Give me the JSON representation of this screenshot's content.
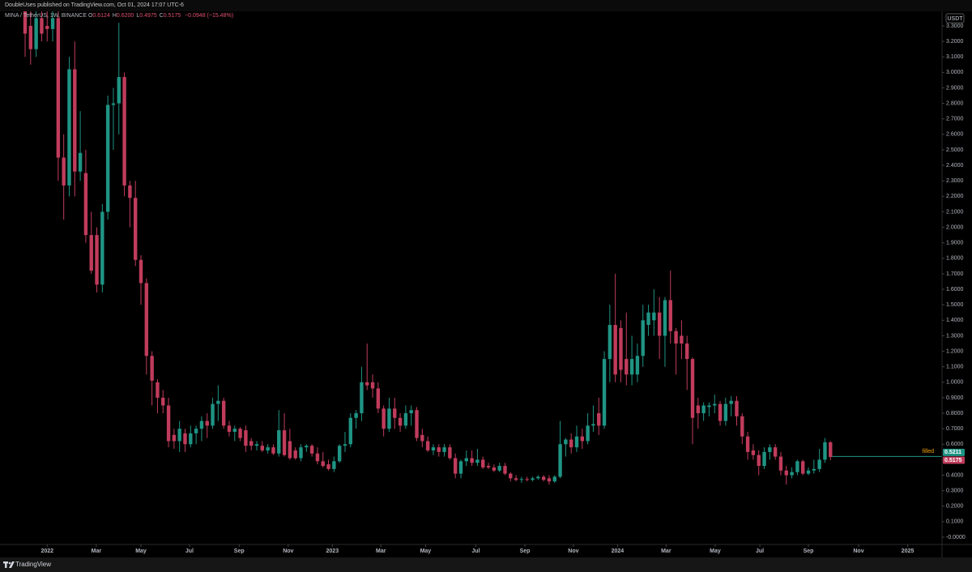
{
  "header": {
    "publisher": "DoubleUses published on TradingView.com, Oct 01, 2024 17:07 UTC-6"
  },
  "chart_data": {
    "type": "candlestick",
    "symbol": "MINA / TetherUS, 1W, BINANCE",
    "ohlc_legend": [
      {
        "label": "O",
        "value": "0.6124"
      },
      {
        "label": "H",
        "value": "0.6200"
      },
      {
        "label": "L",
        "value": "0.4975"
      },
      {
        "label": "C",
        "value": "0.5175"
      }
    ],
    "change": "−0.0948 (−15.48%)",
    "currency": "USDT",
    "up_color": "#1f9484",
    "down_color": "#c03c5c",
    "open": [
      3.4,
      3.3,
      3.15,
      3.35,
      3.3,
      3.28,
      3.35,
      2.45,
      2.27,
      3.02,
      2.36,
      2.35,
      1.95,
      1.95,
      1.63,
      2.1,
      2.79,
      2.8,
      2.97,
      2.27,
      2.19,
      1.79,
      1.64,
      1.17,
      1.0,
      0.9,
      0.85,
      0.66,
      0.62,
      0.67,
      0.6,
      0.67,
      0.7,
      0.75,
      0.72,
      0.86,
      0.88,
      0.72,
      0.68,
      0.7,
      0.69,
      0.62,
      0.59,
      0.59,
      0.56,
      0.58,
      0.54,
      0.69,
      0.62,
      0.56,
      0.51,
      0.58,
      0.59,
      0.54,
      0.49,
      0.47,
      0.44,
      0.49,
      0.59,
      0.6,
      0.77,
      0.8,
      1.0,
      1.0,
      0.96,
      0.83,
      0.7,
      0.83,
      0.77,
      0.72,
      0.8,
      0.82,
      0.66,
      0.62,
      0.56,
      0.58,
      0.55,
      0.58,
      0.51,
      0.41,
      0.49,
      0.51,
      0.48,
      0.5,
      0.46,
      0.45,
      0.43,
      0.46,
      0.41,
      0.38,
      0.37,
      0.375,
      0.37,
      0.38,
      0.39,
      0.38,
      0.36,
      0.39,
      0.6,
      0.63,
      0.58,
      0.65,
      0.62,
      0.72,
      0.8,
      0.72,
      1.15,
      1.37,
      1.35,
      1.15,
      1.05,
      1.05,
      1.17,
      1.37,
      1.4,
      1.45,
      1.3,
      1.53,
      1.33,
      1.3,
      1.25,
      1.15,
      0.85,
      0.8,
      0.84,
      0.85,
      0.86,
      0.75,
      0.86,
      0.88,
      0.78,
      0.65,
      0.56,
      0.53,
      0.46,
      0.55,
      0.58,
      0.52,
      0.43,
      0.4,
      0.42,
      0.49,
      0.41,
      0.43,
      0.44,
      0.5,
      0.6124
    ],
    "high": [
      3.45,
      3.4,
      3.4,
      3.4,
      3.4,
      3.4,
      3.4,
      2.6,
      3.1,
      3.2,
      2.75,
      2.5,
      2.1,
      2.0,
      2.15,
      2.85,
      2.9,
      3.32,
      3.0,
      2.3,
      2.3,
      1.82,
      1.67,
      1.2,
      1.02,
      0.95,
      0.9,
      0.7,
      0.75,
      0.7,
      0.72,
      0.72,
      0.78,
      0.8,
      0.9,
      0.98,
      0.9,
      0.75,
      0.72,
      0.71,
      0.72,
      0.64,
      0.62,
      0.62,
      0.6,
      0.6,
      0.82,
      0.8,
      0.7,
      0.58,
      0.6,
      0.6,
      0.6,
      0.58,
      0.55,
      0.5,
      0.52,
      0.6,
      0.68,
      0.8,
      0.82,
      1.1,
      1.25,
      1.05,
      1.0,
      0.85,
      0.9,
      0.9,
      0.8,
      0.85,
      0.85,
      0.84,
      0.7,
      0.65,
      0.6,
      0.6,
      0.6,
      0.6,
      0.54,
      0.5,
      0.56,
      0.56,
      0.57,
      0.52,
      0.48,
      0.47,
      0.48,
      0.48,
      0.42,
      0.4,
      0.39,
      0.39,
      0.39,
      0.4,
      0.4,
      0.4,
      0.4,
      0.75,
      0.64,
      0.67,
      0.72,
      0.7,
      0.8,
      0.85,
      0.9,
      1.2,
      1.5,
      1.7,
      1.4,
      1.45,
      1.3,
      1.25,
      1.5,
      1.5,
      1.6,
      1.55,
      1.55,
      1.72,
      1.35,
      1.4,
      1.3,
      1.16,
      0.9,
      0.87,
      0.87,
      0.92,
      0.88,
      0.9,
      0.91,
      0.91,
      0.8,
      0.68,
      0.6,
      0.56,
      0.58,
      0.6,
      0.6,
      0.55,
      0.46,
      0.45,
      0.5,
      0.5,
      0.45,
      0.5,
      0.57,
      0.64,
      0.62
    ],
    "low": [
      3.1,
      3.05,
      3.1,
      3.2,
      3.2,
      3.2,
      2.3,
      2.05,
      2.2,
      2.2,
      2.3,
      1.9,
      1.7,
      1.58,
      1.58,
      2.05,
      2.5,
      2.6,
      2.2,
      2.0,
      1.75,
      1.5,
      1.05,
      0.85,
      0.8,
      0.8,
      0.58,
      0.57,
      0.55,
      0.55,
      0.58,
      0.6,
      0.62,
      0.64,
      0.7,
      0.75,
      0.7,
      0.65,
      0.62,
      0.62,
      0.55,
      0.56,
      0.56,
      0.55,
      0.54,
      0.53,
      0.52,
      0.52,
      0.5,
      0.5,
      0.49,
      0.55,
      0.52,
      0.47,
      0.45,
      0.43,
      0.42,
      0.48,
      0.55,
      0.58,
      0.7,
      0.75,
      0.95,
      0.9,
      0.8,
      0.65,
      0.68,
      0.7,
      0.68,
      0.7,
      0.72,
      0.62,
      0.58,
      0.55,
      0.53,
      0.52,
      0.52,
      0.5,
      0.38,
      0.38,
      0.46,
      0.46,
      0.46,
      0.44,
      0.44,
      0.42,
      0.42,
      0.4,
      0.36,
      0.36,
      0.35,
      0.36,
      0.36,
      0.37,
      0.36,
      0.34,
      0.35,
      0.38,
      0.52,
      0.54,
      0.55,
      0.57,
      0.6,
      0.68,
      0.66,
      0.7,
      1.0,
      1.0,
      1.0,
      0.98,
      0.98,
      1.0,
      1.1,
      1.3,
      1.3,
      1.15,
      1.1,
      1.25,
      1.05,
      1.15,
      0.95,
      0.6,
      0.7,
      0.75,
      0.78,
      0.8,
      0.72,
      0.72,
      0.78,
      0.72,
      0.6,
      0.5,
      0.5,
      0.4,
      0.44,
      0.5,
      0.5,
      0.4,
      0.34,
      0.38,
      0.4,
      0.4,
      0.4,
      0.41,
      0.42,
      0.48,
      0.4975
    ],
    "close": [
      3.25,
      3.15,
      3.35,
      3.25,
      3.28,
      3.35,
      2.45,
      2.27,
      3.02,
      2.36,
      2.48,
      1.95,
      1.72,
      1.63,
      2.1,
      2.79,
      2.8,
      2.97,
      2.27,
      2.19,
      1.79,
      1.64,
      1.17,
      1.01,
      0.9,
      0.85,
      0.62,
      0.62,
      0.7,
      0.6,
      0.67,
      0.7,
      0.75,
      0.72,
      0.86,
      0.88,
      0.72,
      0.68,
      0.7,
      0.64,
      0.59,
      0.59,
      0.6,
      0.56,
      0.58,
      0.54,
      0.69,
      0.53,
      0.51,
      0.51,
      0.58,
      0.59,
      0.54,
      0.49,
      0.46,
      0.44,
      0.49,
      0.59,
      0.6,
      0.77,
      0.8,
      1.0,
      0.98,
      0.96,
      0.83,
      0.7,
      0.83,
      0.77,
      0.72,
      0.8,
      0.82,
      0.64,
      0.62,
      0.56,
      0.58,
      0.55,
      0.58,
      0.51,
      0.41,
      0.49,
      0.51,
      0.48,
      0.5,
      0.45,
      0.45,
      0.43,
      0.46,
      0.41,
      0.38,
      0.37,
      0.375,
      0.37,
      0.38,
      0.39,
      0.37,
      0.36,
      0.39,
      0.6,
      0.63,
      0.58,
      0.65,
      0.62,
      0.72,
      0.73,
      0.72,
      1.15,
      1.37,
      1.05,
      1.08,
      1.05,
      1.15,
      1.17,
      1.4,
      1.45,
      1.45,
      1.3,
      1.53,
      1.33,
      1.25,
      1.25,
      1.15,
      0.77,
      0.8,
      0.85,
      0.85,
      0.86,
      0.75,
      0.86,
      0.88,
      0.78,
      0.65,
      0.55,
      0.53,
      0.46,
      0.55,
      0.58,
      0.52,
      0.43,
      0.4,
      0.42,
      0.49,
      0.41,
      0.43,
      0.44,
      0.5,
      0.6124,
      0.5175
    ],
    "ylim": [
      -0.047,
      3.394
    ],
    "yticks": [
      {
        "value": 0,
        "label": "-0.0000"
      },
      {
        "value": 0.1,
        "label": "0.1000"
      },
      {
        "value": 0.2,
        "label": "0.2000"
      },
      {
        "value": 0.3,
        "label": "0.3000"
      },
      {
        "value": 0.4,
        "label": "0.4000"
      },
      {
        "value": 0.5,
        "label": "0.5000"
      },
      {
        "value": 0.6,
        "label": "0.6000"
      },
      {
        "value": 0.7,
        "label": "0.7000"
      },
      {
        "value": 0.8,
        "label": "0.8000"
      },
      {
        "value": 0.9,
        "label": "0.9000"
      },
      {
        "value": 1.0,
        "label": "1.0000"
      },
      {
        "value": 1.1,
        "label": "1.1000"
      },
      {
        "value": 1.2,
        "label": "1.2000"
      },
      {
        "value": 1.3,
        "label": "1.3000"
      },
      {
        "value": 1.4,
        "label": "1.4000"
      },
      {
        "value": 1.5,
        "label": "1.5000"
      },
      {
        "value": 1.6,
        "label": "1.6000"
      },
      {
        "value": 1.7,
        "label": "1.7000"
      },
      {
        "value": 1.8,
        "label": "1.8000"
      },
      {
        "value": 1.9,
        "label": "1.9000"
      },
      {
        "value": 2.0,
        "label": "2.0000"
      },
      {
        "value": 2.1,
        "label": "2.1000"
      },
      {
        "value": 2.2,
        "label": "2.2000"
      },
      {
        "value": 2.3,
        "label": "2.3000"
      },
      {
        "value": 2.4,
        "label": "2.4000"
      },
      {
        "value": 2.5,
        "label": "2.5000"
      },
      {
        "value": 2.6,
        "label": "2.6000"
      },
      {
        "value": 2.7,
        "label": "2.7000"
      },
      {
        "value": 2.8,
        "label": "2.8000"
      },
      {
        "value": 2.9,
        "label": "2.9000"
      },
      {
        "value": 3.0,
        "label": "3.0000"
      },
      {
        "value": 3.1,
        "label": "3.1000"
      },
      {
        "value": 3.2,
        "label": "3.2000"
      },
      {
        "value": 3.3,
        "label": "3.3000"
      }
    ],
    "xticks": [
      {
        "value": 4,
        "label": "2022"
      },
      {
        "value": 12.9,
        "label": "Mar"
      },
      {
        "value": 21.0,
        "label": "May"
      },
      {
        "value": 29.8,
        "label": "Jul"
      },
      {
        "value": 38.8,
        "label": "Sep"
      },
      {
        "value": 47.7,
        "label": "Nov"
      },
      {
        "value": 55.7,
        "label": "2023"
      },
      {
        "value": 64.5,
        "label": "Mar"
      },
      {
        "value": 72.6,
        "label": "May"
      },
      {
        "value": 81.7,
        "label": "Jul"
      },
      {
        "value": 90.6,
        "label": "Sep"
      },
      {
        "value": 99.4,
        "label": "Nov"
      },
      {
        "value": 107.4,
        "label": "2024"
      },
      {
        "value": 116.2,
        "label": "Mar"
      },
      {
        "value": 125.1,
        "label": "May"
      },
      {
        "value": 133.2,
        "label": "Jul"
      },
      {
        "value": 142.0,
        "label": "Sep"
      },
      {
        "value": 151.1,
        "label": "Nov"
      },
      {
        "value": 160.0,
        "label": "2025"
      }
    ],
    "annotations": [
      {
        "text": "filled",
        "value": 0.5211,
        "color": "#f7a600",
        "line_color": "#1f9484"
      }
    ],
    "price_tags": [
      {
        "value": 0.5211,
        "label": "0.5211",
        "color": "#1f9484"
      },
      {
        "value": 0.5175,
        "label": "0.5175",
        "color": "#c03c5c"
      }
    ]
  },
  "footer": {
    "brand": "TradingView"
  }
}
